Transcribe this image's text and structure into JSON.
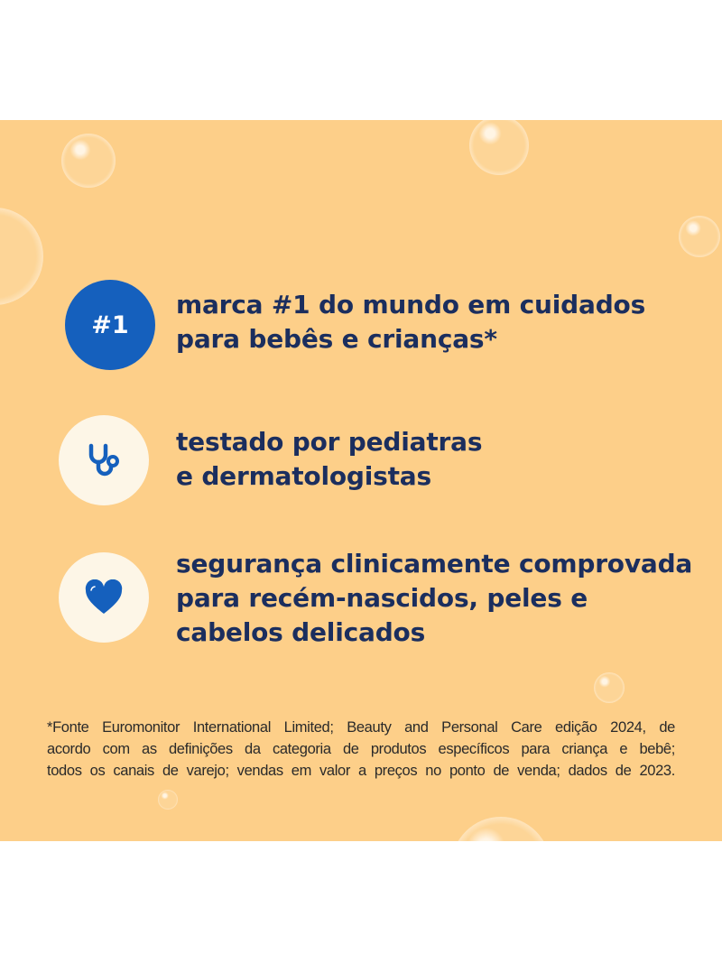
{
  "colors": {
    "background": "#FDCF89",
    "text": "#1B2E5E",
    "accent": "#1560BD",
    "badge_bg": "#FDF6E7"
  },
  "claims": [
    {
      "icon": "#1",
      "lines": [
        "marca #1 do mundo em cuidados",
        "para bebês e crianças*"
      ]
    },
    {
      "icon": "stethoscope-icon",
      "lines": [
        "testado por pediatras",
        "e dermatologistas"
      ]
    },
    {
      "icon": "heart-icon",
      "lines": [
        "segurança clinicamente comprovada",
        "para recém-nascidos, peles e",
        "cabelos delicados"
      ]
    }
  ],
  "footnote": {
    "lines": [
      "*Fonte Euromonitor International Limited; Beauty and Personal Care edição 2024, de",
      "acordo com as definições da categoria de produtos específicos para criança e bebê;",
      "todos os canais de varejo; vendas em valor a preços no ponto de venda; dados de 2023."
    ]
  }
}
